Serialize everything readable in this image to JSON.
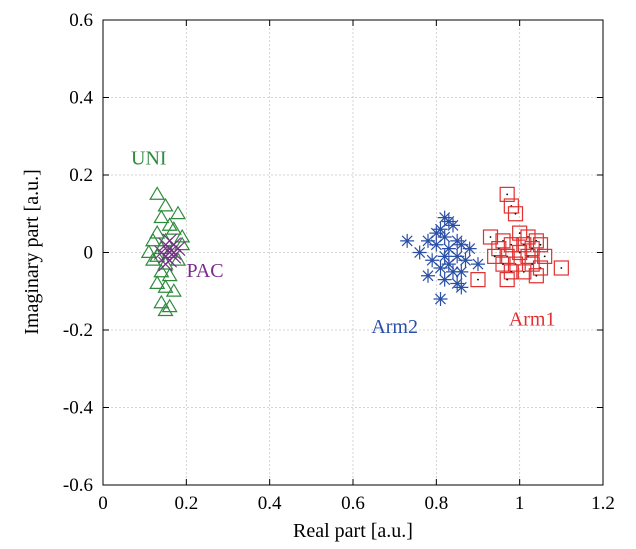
{
  "chart_data": {
    "type": "scatter",
    "title": "",
    "xlabel": "Real part [a.u.]",
    "ylabel": "Imaginary part [a.u.]",
    "xlim": [
      0,
      1.2
    ],
    "ylim": [
      -0.6,
      0.6
    ],
    "xticks": [
      "0",
      "0.2",
      "0.4",
      "0.6",
      "0.8",
      "1",
      "1.2"
    ],
    "yticks": [
      "-0.6",
      "-0.4",
      "-0.2",
      "0",
      "0.2",
      "0.4",
      "0.6"
    ],
    "grid": true,
    "series": [
      {
        "name": "UNI",
        "marker": "triangle",
        "color": "#2e8b3d",
        "label_pos": [
          0.11,
          0.245
        ],
        "points": [
          [
            0.13,
            0.15
          ],
          [
            0.15,
            0.12
          ],
          [
            0.18,
            0.1
          ],
          [
            0.14,
            0.09
          ],
          [
            0.16,
            0.07
          ],
          [
            0.13,
            0.05
          ],
          [
            0.17,
            0.06
          ],
          [
            0.12,
            0.03
          ],
          [
            0.15,
            0.03
          ],
          [
            0.19,
            0.02
          ],
          [
            0.14,
            0.01
          ],
          [
            0.11,
            0.0
          ],
          [
            0.16,
            0.0
          ],
          [
            0.13,
            -0.01
          ],
          [
            0.18,
            -0.02
          ],
          [
            0.15,
            -0.03
          ],
          [
            0.14,
            -0.05
          ],
          [
            0.16,
            -0.06
          ],
          [
            0.13,
            -0.08
          ],
          [
            0.15,
            -0.09
          ],
          [
            0.17,
            -0.1
          ],
          [
            0.14,
            -0.13
          ],
          [
            0.16,
            -0.14
          ],
          [
            0.15,
            -0.15
          ],
          [
            0.12,
            -0.02
          ],
          [
            0.19,
            0.04
          ]
        ]
      },
      {
        "name": "PAC",
        "marker": "x",
        "color": "#7a2a8a",
        "label_pos": [
          0.245,
          -0.045
        ],
        "points": [
          [
            0.15,
            0.02
          ],
          [
            0.16,
            0.01
          ],
          [
            0.17,
            0.0
          ],
          [
            0.15,
            -0.01
          ],
          [
            0.16,
            -0.02
          ],
          [
            0.17,
            0.02
          ],
          [
            0.14,
            0.0
          ],
          [
            0.18,
            0.01
          ],
          [
            0.16,
            0.03
          ],
          [
            0.15,
            -0.03
          ],
          [
            0.17,
            -0.01
          ],
          [
            0.16,
            0.0
          ]
        ]
      },
      {
        "name": "Arm2",
        "marker": "asterisk",
        "color": "#2a4fa6",
        "label_pos": [
          0.7,
          -0.19
        ],
        "points": [
          [
            0.82,
            0.09
          ],
          [
            0.83,
            0.08
          ],
          [
            0.81,
            0.06
          ],
          [
            0.84,
            0.07
          ],
          [
            0.8,
            0.05
          ],
          [
            0.82,
            0.04
          ],
          [
            0.85,
            0.03
          ],
          [
            0.78,
            0.03
          ],
          [
            0.73,
            0.03
          ],
          [
            0.86,
            0.02
          ],
          [
            0.8,
            0.02
          ],
          [
            0.83,
            0.01
          ],
          [
            0.76,
            0.0
          ],
          [
            0.88,
            0.01
          ],
          [
            0.82,
            -0.01
          ],
          [
            0.85,
            -0.01
          ],
          [
            0.79,
            -0.02
          ],
          [
            0.83,
            -0.03
          ],
          [
            0.87,
            -0.02
          ],
          [
            0.81,
            -0.04
          ],
          [
            0.84,
            -0.05
          ],
          [
            0.9,
            -0.03
          ],
          [
            0.86,
            -0.05
          ],
          [
            0.82,
            -0.07
          ],
          [
            0.85,
            -0.08
          ],
          [
            0.86,
            -0.09
          ],
          [
            0.81,
            -0.12
          ],
          [
            0.78,
            -0.06
          ]
        ]
      },
      {
        "name": "Arm1",
        "marker": "square",
        "color": "#e03030",
        "label_pos": [
          1.03,
          -0.17
        ],
        "points": [
          [
            0.97,
            0.15
          ],
          [
            0.98,
            0.12
          ],
          [
            0.99,
            0.1
          ],
          [
            0.93,
            0.04
          ],
          [
            0.96,
            0.03
          ],
          [
            1.0,
            0.05
          ],
          [
            1.02,
            0.04
          ],
          [
            1.04,
            0.03
          ],
          [
            0.95,
            0.01
          ],
          [
            0.98,
            0.02
          ],
          [
            1.01,
            0.02
          ],
          [
            1.03,
            0.01
          ],
          [
            1.05,
            0.02
          ],
          [
            0.94,
            -0.01
          ],
          [
            0.97,
            -0.01
          ],
          [
            1.0,
            0.0
          ],
          [
            1.02,
            -0.01
          ],
          [
            1.06,
            -0.01
          ],
          [
            0.96,
            -0.03
          ],
          [
            0.99,
            -0.03
          ],
          [
            1.03,
            -0.03
          ],
          [
            1.05,
            -0.04
          ],
          [
            0.98,
            -0.05
          ],
          [
            1.01,
            -0.05
          ],
          [
            1.04,
            -0.06
          ],
          [
            0.97,
            -0.07
          ],
          [
            1.1,
            -0.04
          ],
          [
            0.9,
            -0.07
          ]
        ]
      }
    ]
  }
}
